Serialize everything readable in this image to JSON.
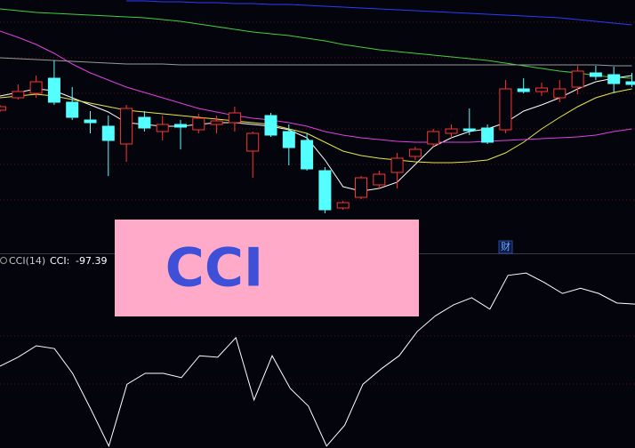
{
  "chart_data": [
    {
      "type": "candlestick",
      "ylim": [
        0,
        280
      ],
      "up_color": "#ff3232",
      "down_color": "#54ffff",
      "open": [
        156,
        170,
        175,
        192,
        165,
        145,
        138,
        118,
        148,
        132,
        140,
        134,
        140,
        142,
        110,
        150,
        132,
        122,
        88,
        46,
        58,
        72,
        86,
        104,
        118,
        130,
        135,
        136,
        134,
        180,
        177,
        170,
        182,
        198,
        196,
        188
      ],
      "high": [
        162,
        185,
        195,
        212,
        182,
        155,
        150,
        162,
        155,
        150,
        145,
        152,
        150,
        160,
        132,
        153,
        140,
        130,
        92,
        54,
        82,
        88,
        108,
        115,
        135,
        140,
        158,
        140,
        190,
        192,
        187,
        190,
        206,
        206,
        205,
        198
      ],
      "low": [
        154,
        168,
        170,
        162,
        145,
        130,
        82,
        98,
        132,
        122,
        112,
        130,
        130,
        132,
        80,
        126,
        94,
        88,
        40,
        44,
        56,
        68,
        68,
        100,
        115,
        125,
        128,
        118,
        130,
        175,
        172,
        165,
        174,
        190,
        175,
        182
      ],
      "close": [
        160,
        177,
        188,
        165,
        148,
        142,
        122,
        158,
        136,
        140,
        137,
        147,
        144,
        153,
        130,
        128,
        114,
        90,
        44,
        52,
        80,
        84,
        102,
        112,
        132,
        135,
        133,
        120,
        180,
        177,
        181,
        180,
        200,
        194,
        186,
        185
      ],
      "series": [
        {
          "color": "#ffffff",
          "values": [
            172,
            176,
            180,
            178,
            170,
            162,
            154,
            142,
            140,
            138,
            138,
            140,
            142,
            142,
            140,
            138,
            134,
            125,
            100,
            70,
            65,
            68,
            75,
            95,
            115,
            125,
            132,
            135,
            142,
            155,
            162,
            170,
            180,
            188,
            192,
            195
          ]
        },
        {
          "color": "#e8e84a",
          "values": [
            170,
            172,
            174,
            172,
            168,
            164,
            160,
            156,
            154,
            152,
            150,
            148,
            146,
            144,
            142,
            140,
            135,
            130,
            120,
            110,
            105,
            102,
            100,
            98,
            97,
            97,
            98,
            100,
            108,
            120,
            135,
            148,
            160,
            170,
            176,
            180
          ]
        },
        {
          "color": "#e040e0",
          "values": [
            245,
            238,
            230,
            220,
            208,
            198,
            190,
            182,
            176,
            170,
            164,
            158,
            154,
            150,
            147,
            145,
            142,
            138,
            132,
            128,
            125,
            123,
            121,
            120,
            120,
            120,
            120,
            121,
            122,
            123,
            124,
            125,
            126,
            128,
            132,
            135
          ]
        },
        {
          "color": "#40d040",
          "values": [
            270,
            268,
            266,
            265,
            264,
            263,
            262,
            261,
            260,
            258,
            256,
            253,
            250,
            247,
            244,
            242,
            240,
            237,
            234,
            230,
            227,
            224,
            222,
            220,
            218,
            216,
            214,
            212,
            209,
            206,
            203,
            200,
            198,
            195,
            193,
            192
          ]
        },
        {
          "color": "#9a9a9a",
          "values": [
            215,
            214,
            213,
            212,
            211,
            210,
            209,
            208,
            208,
            208,
            207,
            207,
            207,
            207,
            207,
            207,
            207,
            207,
            207,
            207,
            207,
            207,
            207,
            207,
            207,
            207,
            207,
            207,
            207,
            207,
            207,
            207,
            207,
            207,
            206,
            206
          ]
        },
        {
          "color": "#2a3cff",
          "values": [
            null,
            null,
            null,
            null,
            null,
            null,
            null,
            279,
            279,
            278,
            278,
            277,
            277,
            276,
            276,
            275,
            275,
            274,
            273,
            272,
            271,
            270,
            269,
            268,
            267,
            266,
            265,
            264,
            263,
            262,
            261,
            260,
            258,
            256,
            254,
            252
          ]
        }
      ],
      "marker": "财"
    },
    {
      "type": "line",
      "name": "CCI(14)",
      "value_prefix": "CCI:",
      "annotation": "CCI",
      "ylim": [
        -400,
        0
      ],
      "color": "#ffffff",
      "values": [
        -228,
        -209,
        -185,
        -191,
        -243,
        -318,
        -396,
        -266,
        -243,
        -243,
        -252,
        -206,
        -209,
        -168,
        -299,
        -206,
        -275,
        -312,
        -396,
        -352,
        -266,
        -234,
        -206,
        -155,
        -122,
        -99,
        -84,
        -108,
        -37,
        -32,
        -52,
        -75,
        -64,
        -75,
        -95,
        -97.39
      ]
    }
  ]
}
